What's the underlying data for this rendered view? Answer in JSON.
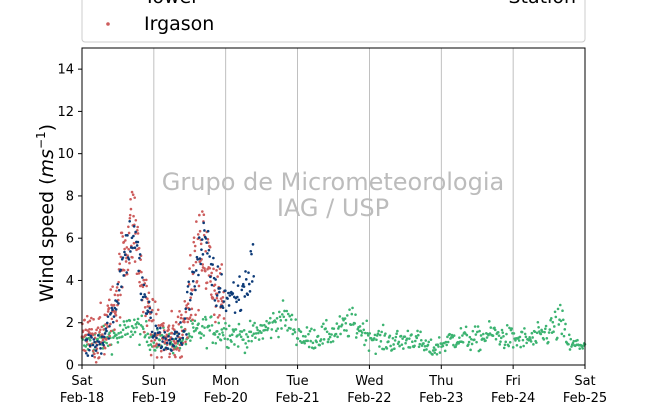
{
  "chart_data": {
    "type": "scatter",
    "ylabel": "Wind speed (ms⁻¹)",
    "ylabel_parts": {
      "before": "Wind speed (",
      "unit": "ms",
      "exp": "−1",
      "after": ")"
    },
    "ylim": [
      0,
      15
    ],
    "yticks": [
      0,
      2,
      4,
      6,
      8,
      10,
      12,
      14
    ],
    "xlim_days": [
      "Feb-18",
      "Feb-25"
    ],
    "xticks": [
      {
        "top": "Sat",
        "bottom": "Feb-18"
      },
      {
        "top": "Sun",
        "bottom": "Feb-19"
      },
      {
        "top": "Mon",
        "bottom": "Feb-20"
      },
      {
        "top": "Tue",
        "bottom": "Feb-21"
      },
      {
        "top": "Wed",
        "bottom": "Feb-22"
      },
      {
        "top": "Thu",
        "bottom": "Feb-23"
      },
      {
        "top": "Fri",
        "bottom": "Feb-24"
      },
      {
        "top": "Sat",
        "bottom": "Feb-25"
      }
    ],
    "grid": "vertical",
    "legend": {
      "placement": "top",
      "entries": [
        {
          "name": "Tower",
          "color": "#0d3b78"
        },
        {
          "name": "Irgason",
          "color": "#cd5c5c"
        },
        {
          "name": "Station",
          "color": "#3cb371"
        }
      ]
    },
    "watermark": [
      "Grupo de Micrometeorologia",
      "IAG / USP"
    ],
    "series": [
      {
        "name": "Station",
        "color": "#3cb371",
        "x_start": 0.0,
        "x_end": 7.0,
        "x_step": 0.0104,
        "key_x": [
          0.0,
          0.3,
          0.6,
          0.7,
          1.0,
          1.3,
          1.7,
          2.0,
          2.3,
          2.6,
          2.8,
          3.1,
          3.5,
          3.75,
          4.1,
          4.4,
          4.6,
          4.85,
          5.2,
          5.5,
          5.7,
          6.0,
          6.3,
          6.5,
          6.65,
          6.8,
          7.0
        ],
        "key_mean": [
          1.0,
          1.2,
          1.5,
          1.9,
          1.2,
          1.1,
          1.7,
          1.6,
          1.3,
          1.8,
          2.3,
          1.2,
          1.5,
          2.0,
          1.2,
          1.1,
          1.3,
          0.7,
          1.3,
          1.2,
          1.5,
          1.2,
          1.2,
          1.6,
          2.0,
          0.9,
          1.0
        ],
        "key_spread": [
          0.4,
          0.4,
          0.5,
          0.5,
          0.4,
          0.4,
          0.5,
          0.5,
          0.4,
          0.5,
          0.5,
          0.4,
          0.4,
          0.5,
          0.4,
          0.4,
          0.4,
          0.3,
          0.4,
          0.4,
          0.4,
          0.4,
          0.4,
          0.5,
          0.7,
          0.3,
          0.3
        ]
      },
      {
        "name": "Irgason",
        "color": "#cd5c5c",
        "x_start": 0.0,
        "x_end": 1.98,
        "x_step": 0.0052,
        "key_x": [
          0.0,
          0.3,
          0.45,
          0.6,
          0.72,
          0.85,
          1.0,
          1.2,
          1.4,
          1.55,
          1.7,
          1.85,
          1.98
        ],
        "key_mean": [
          1.2,
          1.4,
          2.8,
          5.5,
          6.8,
          3.5,
          1.6,
          1.1,
          1.6,
          4.5,
          5.5,
          3.5,
          3.0
        ],
        "key_spread": [
          0.8,
          0.9,
          1.0,
          1.4,
          1.5,
          1.2,
          0.9,
          0.8,
          1.0,
          1.3,
          1.4,
          1.1,
          1.0
        ]
      },
      {
        "name": "Tower",
        "color": "#0d3b78",
        "x_start": 0.05,
        "x_end": 2.4,
        "x_step": 0.0104,
        "key_x": [
          0.05,
          0.3,
          0.45,
          0.6,
          0.72,
          0.85,
          1.0,
          1.2,
          1.4,
          1.55,
          1.7,
          1.85,
          2.0,
          2.2,
          2.4
        ],
        "key_mean": [
          0.9,
          1.3,
          2.7,
          5.3,
          6.3,
          3.4,
          1.5,
          1.0,
          1.4,
          4.3,
          5.8,
          3.8,
          3.2,
          3.3,
          4.8
        ],
        "key_spread": [
          0.5,
          0.5,
          0.6,
          0.9,
          1.0,
          0.8,
          0.5,
          0.4,
          0.6,
          0.9,
          1.0,
          0.8,
          0.7,
          0.8,
          0.9
        ]
      }
    ]
  }
}
